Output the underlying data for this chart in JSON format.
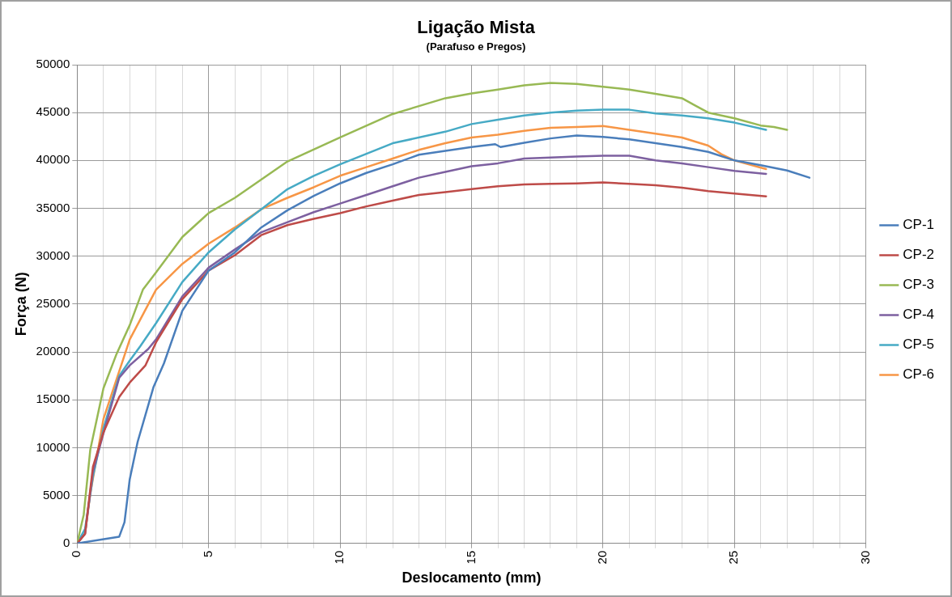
{
  "chart_data": {
    "type": "line",
    "title": "Ligação Mista",
    "subtitle": "(Parafuso e Pregos)",
    "xlabel": "Deslocamento (mm)",
    "ylabel": "Força (N)",
    "xlim": [
      0,
      30
    ],
    "xticks": [
      0,
      {
        "value": 1,
        "label": null
      },
      {
        "value": 2,
        "label": null
      },
      {
        "value": 3,
        "label": null
      },
      {
        "value": 4,
        "label": null
      },
      5,
      {
        "value": 6,
        "label": null
      },
      {
        "value": 7,
        "label": null
      },
      {
        "value": 8,
        "label": null
      },
      {
        "value": 9,
        "label": null
      },
      10,
      {
        "value": 11,
        "label": null
      },
      {
        "value": 12,
        "label": null
      },
      {
        "value": 13,
        "label": null
      },
      {
        "value": 14,
        "label": null
      },
      15,
      {
        "value": 16,
        "label": null
      },
      {
        "value": 17,
        "label": null
      },
      {
        "value": 18,
        "label": null
      },
      {
        "value": 19,
        "label": null
      },
      20,
      {
        "value": 21,
        "label": null
      },
      {
        "value": 22,
        "label": null
      },
      {
        "value": 23,
        "label": null
      },
      {
        "value": 24,
        "label": null
      },
      25,
      {
        "value": 26,
        "label": null
      },
      {
        "value": 27,
        "label": null
      },
      {
        "value": 28,
        "label": null
      },
      {
        "value": 29,
        "label": null
      },
      30
    ],
    "ylim": [
      0,
      50000
    ],
    "yticks": [
      0,
      5000,
      10000,
      15000,
      20000,
      25000,
      30000,
      35000,
      40000,
      45000,
      50000
    ],
    "grid": true,
    "legend": "right",
    "marker": "none",
    "line_style": "solid",
    "series": [
      {
        "name": "CP-1",
        "color": "#4a7ebb",
        "x": [
          0,
          1.6,
          1.8,
          2.0,
          2.3,
          2.9,
          3.3,
          4,
          5,
          6,
          7,
          8,
          9,
          10,
          11,
          12,
          13,
          14,
          15,
          15.9,
          16.1,
          17,
          18,
          19,
          20,
          21,
          22,
          23,
          24,
          25,
          26,
          27,
          27.85
        ],
        "values": [
          0,
          700,
          2200,
          6700,
          10600,
          16300,
          18800,
          24300,
          28500,
          30400,
          33000,
          34800,
          36300,
          37600,
          38700,
          39600,
          40600,
          41000,
          41400,
          41700,
          41400,
          41850,
          42300,
          42600,
          42450,
          42200,
          41800,
          41400,
          40900,
          40000,
          39500,
          38950,
          38200
        ]
      },
      {
        "name": "CP-2",
        "color": "#be4b48",
        "x": [
          0,
          0.3,
          0.6,
          1,
          1.6,
          2,
          2.6,
          3,
          4,
          5,
          6,
          7,
          8,
          9,
          10,
          11,
          12,
          13,
          14,
          15,
          16,
          17,
          18,
          19,
          20,
          21,
          22,
          23,
          24,
          25,
          26.2
        ],
        "values": [
          0,
          1000,
          8000,
          11600,
          15300,
          16800,
          18600,
          21000,
          25500,
          28500,
          30100,
          32200,
          33250,
          33900,
          34500,
          35200,
          35800,
          36400,
          36700,
          37000,
          37300,
          37500,
          37550,
          37600,
          37700,
          37550,
          37400,
          37150,
          36800,
          36550,
          36250
        ]
      },
      {
        "name": "CP-3",
        "color": "#98b954",
        "x": [
          0,
          0.25,
          0.5,
          1,
          1.5,
          2,
          2.5,
          3,
          4,
          5,
          6,
          8,
          10,
          12,
          14,
          15,
          16,
          17,
          18,
          19,
          20,
          21,
          22,
          23,
          23.5,
          24,
          25,
          26,
          26.5,
          27
        ],
        "values": [
          0,
          3000,
          9800,
          16200,
          19800,
          22800,
          26500,
          28300,
          32000,
          34500,
          36100,
          39900,
          42400,
          44850,
          46500,
          47000,
          47400,
          47850,
          48100,
          48000,
          47700,
          47400,
          46950,
          46500,
          45750,
          45000,
          44400,
          43650,
          43500,
          43200
        ]
      },
      {
        "name": "CP-4",
        "color": "#7d60a0",
        "x": [
          0,
          0.3,
          0.6,
          1,
          1.6,
          2,
          2.7,
          3,
          4,
          5,
          6,
          7,
          8,
          9,
          10,
          11,
          12,
          13,
          14,
          15,
          16,
          17,
          18,
          19,
          20,
          21,
          22,
          23,
          24,
          25,
          26.2
        ],
        "values": [
          0,
          1000,
          7500,
          11500,
          17300,
          18600,
          20300,
          21300,
          25800,
          28800,
          30700,
          32500,
          33550,
          34600,
          35500,
          36400,
          37300,
          38200,
          38800,
          39400,
          39700,
          40200,
          40300,
          40400,
          40500,
          40500,
          40000,
          39700,
          39300,
          38900,
          38600
        ]
      },
      {
        "name": "CP-5",
        "color": "#46aac5",
        "x": [
          0,
          0.3,
          0.6,
          1,
          1.6,
          2,
          2.4,
          3,
          4,
          5,
          6,
          7,
          8,
          9,
          10,
          12,
          14,
          15,
          16,
          17,
          18,
          19,
          20,
          21,
          22,
          23,
          24,
          25,
          26.2
        ],
        "values": [
          0,
          1500,
          7000,
          12000,
          17500,
          19100,
          20600,
          23000,
          27300,
          30400,
          32800,
          34900,
          37000,
          38400,
          39600,
          41800,
          43000,
          43800,
          44250,
          44700,
          45000,
          45200,
          45300,
          45300,
          44900,
          44700,
          44400,
          43950,
          43200
        ]
      },
      {
        "name": "CP-6",
        "color": "#f79646",
        "x": [
          0,
          0.3,
          0.5,
          1,
          2,
          3,
          4,
          5,
          6,
          7,
          8,
          9,
          10,
          11,
          12,
          13,
          14,
          15,
          16,
          17,
          18,
          19,
          20,
          21,
          22,
          23,
          24,
          24.5,
          25,
          26.2
        ],
        "values": [
          0,
          1000,
          5200,
          13000,
          21300,
          26500,
          29200,
          31300,
          33000,
          34900,
          36100,
          37200,
          38400,
          39300,
          40200,
          41100,
          41800,
          42400,
          42700,
          43100,
          43400,
          43500,
          43600,
          43200,
          42800,
          42400,
          41550,
          40650,
          40000,
          39100
        ]
      }
    ]
  }
}
